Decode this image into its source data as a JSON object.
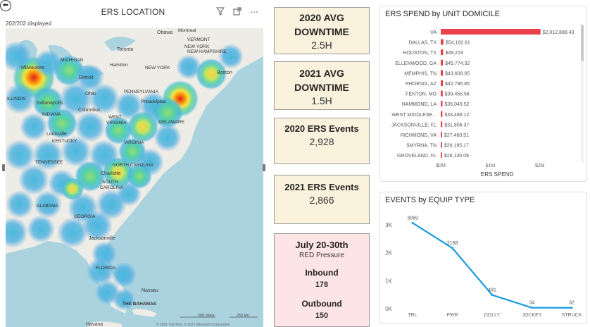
{
  "map": {
    "title": "ERS LOCATION",
    "displayed": "202/202 displayed",
    "toolbar": {
      "filter_icon": "filter-icon",
      "focus_icon": "focus-mode-icon",
      "more_icon": "more-options-icon"
    },
    "labels": {
      "ottawa": "Ottawa",
      "montreal": "Montreal",
      "vermont": "VERMONT",
      "new_york_top": "NEW YORK",
      "new_hampshire": "NEW HAMPSHIRE",
      "toronto": "Toronto",
      "michigan": "MICHIGAN",
      "hamilton": "Hamilton",
      "new_york": "NEW YORK",
      "milwaukee": "Milwaukee",
      "detroit": "Detroit",
      "boston": "Boston",
      "ohio": "Ohio",
      "pennsylvania": "PENNSYLVANIA",
      "illinois": "ILLINOIS",
      "indianapolis": "Indianapolis",
      "columbus": "Columbus",
      "philadelphia": "Philadelphia",
      "indiana": "INDIANA",
      "west_virginia": "WEST\nVIRGINIA",
      "delaware": "DELAWARE",
      "louisville": "Louisville",
      "kentucky": "KENTUCKY",
      "virginia": "VIRGINIA",
      "tennessee": "TENNESSEE",
      "north_carolina": "NORTH CAROLINA",
      "charlotte": "Charlotte",
      "south_carolina": "SOUTH\nCAROLINA",
      "alabama": "ALABAMA",
      "georgia": "GEORGIA",
      "jacksonville": "Jacksonville",
      "florida": "FLORIDA",
      "nassau": "Nassau",
      "bahamas": "THE BAHAMAS",
      "havana": "Havana"
    },
    "scale_miles": "200 miles",
    "scale_km": "250 km",
    "copyright": "© 2021 TomTom, © 2021 Microsoft Corporation"
  },
  "cards": {
    "avg2020": {
      "title_line1": "2020 AVG",
      "title_line2": "DOWNTIME",
      "value": "2.5H"
    },
    "avg2021": {
      "title_line1": "2021 AVG",
      "title_line2": "DOWNTIME",
      "value": "1.5H"
    },
    "ers2020": {
      "title": "2020 ERS Events",
      "value": "2,928"
    },
    "ers2021": {
      "title": "2021 ERS Events",
      "value": "2,866"
    },
    "july": {
      "title": "July 20-30th",
      "subtitle": "RED Pressure",
      "inbound_label": "Inbound",
      "inbound_value": "178",
      "outbound_label": "Outbound",
      "outbound_value": "150"
    }
  },
  "chart_data": [
    {
      "type": "bar",
      "orientation": "horizontal",
      "title": "ERS SPEND by UNIT DOMICILE",
      "xlabel": "ERS SPEND",
      "ylabel": "",
      "categories": [
        "VA",
        "DALLAS, TX",
        "HOUSTON, TX",
        "ELLENWOOD, GA",
        "MEMPHIS, TN",
        "PHOENIX, AZ",
        "FENTON, MO",
        "HAMMOND, LA",
        "WEST MIDDLESE...",
        "JACKSONVILLE, FL",
        "RICHMOND, VA",
        "SMYRNA, TN",
        "GROVELAND, FL"
      ],
      "values": [
        2012888.43,
        54182.91,
        49219,
        45774.32,
        43608.95,
        42786.85,
        39455.58,
        35049.52,
        33486.12,
        31806.37,
        27460.51,
        26195.17,
        26130.09
      ],
      "value_labels": [
        "$2,012,888.43",
        "$54,182.91",
        "$49,219",
        "$45,774.32",
        "$43,608.95",
        "$42,786.85",
        "$39,455.58",
        "$35,049.52",
        "$33,486.12",
        "$31,806.37",
        "$27,460.51",
        "$26,195.17",
        "$26,130.09"
      ],
      "xlim": [
        0,
        2500000
      ],
      "xticks": [
        0,
        1000000,
        2000000
      ],
      "xtick_labels": [
        "$0M",
        "$1M",
        "$2M"
      ],
      "grid": false,
      "bar_color": "#e8414b"
    },
    {
      "type": "line",
      "title": "EVENTS by EQUIP TYPE",
      "categories": [
        "TRL",
        "PWR",
        "DOLLY",
        "JOCKEY",
        "STRUCK"
      ],
      "values": [
        3069,
        2168,
        491,
        34,
        32
      ],
      "value_labels": [
        "3069",
        "2168",
        "491",
        "34",
        "32"
      ],
      "ylim": [
        0,
        3000
      ],
      "yticks": [
        0,
        1000,
        2000,
        3000
      ],
      "ytick_labels": [
        "0K",
        "1K",
        "2K",
        "3K"
      ],
      "grid": false,
      "line_color": "#1a9ce0"
    }
  ]
}
